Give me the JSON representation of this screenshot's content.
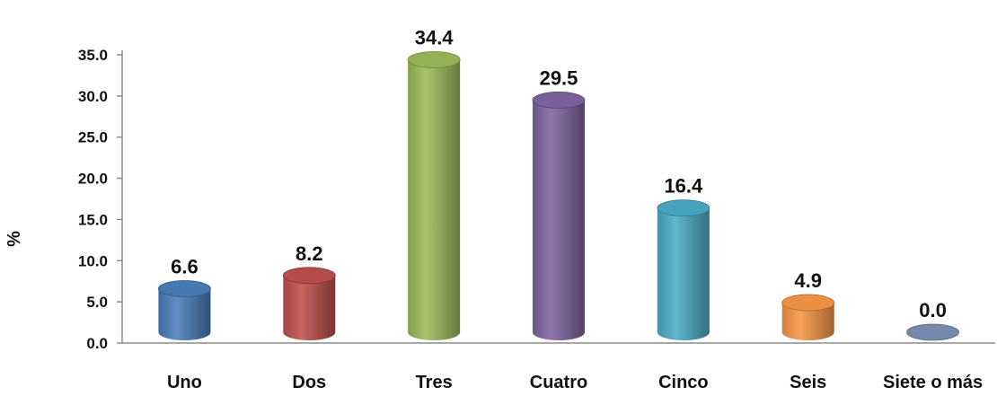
{
  "chart_data": {
    "type": "bar",
    "title": "",
    "xlabel": "",
    "ylabel": "%",
    "ylim": [
      0,
      35
    ],
    "yticks": [
      "0.0",
      "5.0",
      "10.0",
      "15.0",
      "20.0",
      "25.0",
      "30.0",
      "35.0"
    ],
    "grid": false,
    "legend": "none",
    "categories": [
      "Uno",
      "Dos",
      "Tres",
      "Cuatro",
      "Cinco",
      "Seis",
      "Siete o más"
    ],
    "values": [
      6.6,
      8.2,
      34.4,
      29.5,
      16.4,
      4.9,
      0.0
    ],
    "value_labels": [
      "6.6",
      "8.2",
      "34.4",
      "29.5",
      "16.4",
      "4.9",
      "0.0"
    ],
    "colors": [
      "#4a7ebb",
      "#c0504d",
      "#9bbb59",
      "#8064a2",
      "#4bacc6",
      "#f79646",
      "#7c8fb5"
    ]
  }
}
